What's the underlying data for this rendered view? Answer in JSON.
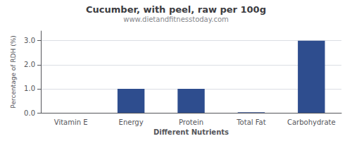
{
  "chart_data": {
    "type": "bar",
    "title": "Cucumber, with peel, raw per 100g",
    "subtitle": "www.dietandfitnesstoday.com",
    "categories": [
      "Vitamin E",
      "Energy",
      "Protein",
      "Total Fat",
      "Carbohydrate"
    ],
    "values": [
      0.0,
      1.0,
      1.0,
      0.02,
      3.0
    ],
    "color": "#2e4d8e",
    "xlabel": "Different Nutrients",
    "ylabel": "Percentage of RDH (%)",
    "ylim": [
      0,
      3.4
    ],
    "yticks": [
      {
        "value": 0,
        "label": "0.0"
      },
      {
        "value": 1,
        "label": "1.0"
      },
      {
        "value": 2,
        "label": "2.0"
      },
      {
        "value": 3,
        "label": "3.0"
      }
    ],
    "grid": true
  }
}
